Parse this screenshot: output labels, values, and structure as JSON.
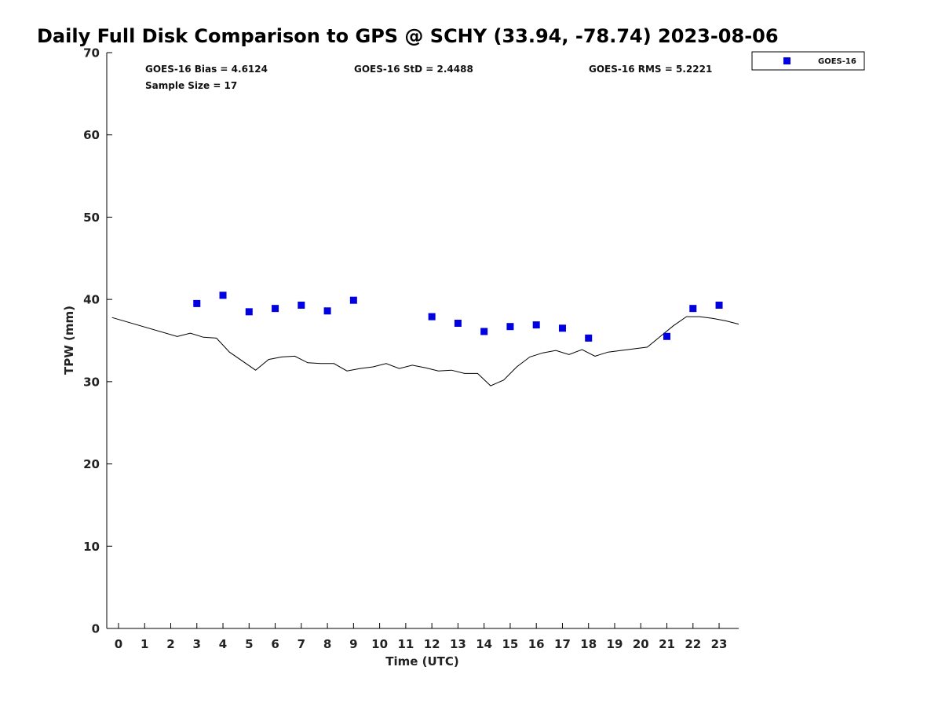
{
  "chart_data": {
    "type": "scatter",
    "title": "Daily Full Disk Comparison to GPS @ SCHY (33.94, -78.74) 2023-08-06",
    "xlabel": "Time (UTC)",
    "ylabel": "TPW (mm)",
    "xlim": [
      -0.45,
      23.75
    ],
    "ylim": [
      0,
      70
    ],
    "xticks": [
      0,
      1,
      2,
      3,
      4,
      5,
      6,
      7,
      8,
      9,
      10,
      11,
      12,
      13,
      14,
      15,
      16,
      17,
      18,
      19,
      20,
      21,
      22,
      23
    ],
    "yticks": [
      0,
      10,
      20,
      30,
      40,
      50,
      60,
      70
    ],
    "grid": false,
    "legend": {
      "placement": "top-right, outside axes",
      "entries": [
        "GOES-16"
      ]
    },
    "stats": {
      "bias": "GOES-16 Bias = 4.6124",
      "std": "GOES-16 StD = 2.4488",
      "rms": "GOES-16 RMS = 5.2221",
      "sample": "Sample Size = 17"
    },
    "series": [
      {
        "name": "GOES-16",
        "kind": "points",
        "marker": "square",
        "color": "#0000e0",
        "x": [
          3,
          4,
          5,
          6,
          7,
          8,
          9,
          12,
          13,
          14,
          15,
          16,
          17,
          18,
          21,
          22,
          23
        ],
        "y": [
          39.5,
          40.5,
          38.5,
          38.9,
          39.3,
          38.6,
          39.9,
          37.9,
          37.1,
          36.1,
          36.7,
          36.9,
          36.5,
          35.3,
          35.5,
          38.9,
          39.3
        ]
      },
      {
        "kind": "line",
        "color": "#000000",
        "x": [
          -0.25,
          2.25,
          2.75,
          3.25,
          3.75,
          4.25,
          5.25,
          5.75,
          6.25,
          6.75,
          7.25,
          7.75,
          8.25,
          8.75,
          9.25,
          9.75,
          10.25,
          10.75,
          11.25,
          11.75,
          12.25,
          12.75,
          13.25,
          13.75,
          14.25,
          14.75,
          15.25,
          15.75,
          16.25,
          16.75,
          17.25,
          17.75,
          18.25,
          18.75,
          20.25,
          20.75,
          21.25,
          21.75,
          22.25,
          22.75,
          23.25,
          23.75
        ],
        "y": [
          37.8,
          35.5,
          35.9,
          35.4,
          35.3,
          33.6,
          31.4,
          32.7,
          33.0,
          33.1,
          32.3,
          32.2,
          32.2,
          31.3,
          31.6,
          31.8,
          32.2,
          31.6,
          32.0,
          31.7,
          31.3,
          31.4,
          31.0,
          31.0,
          29.5,
          30.2,
          31.8,
          33.0,
          33.5,
          33.8,
          33.3,
          33.9,
          33.1,
          33.6,
          34.2,
          35.5,
          36.8,
          37.9,
          37.9,
          37.7,
          37.4,
          37.0
        ]
      }
    ]
  }
}
